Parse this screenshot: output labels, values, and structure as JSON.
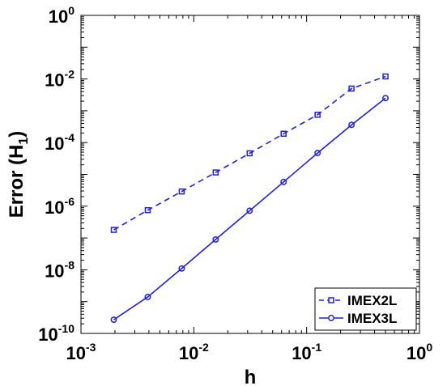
{
  "chart_data": {
    "type": "line",
    "xscale": "log",
    "yscale": "log",
    "xlim": [
      0.001,
      1
    ],
    "ylim": [
      1e-10,
      1
    ],
    "xlabel": "h",
    "ylabel_main": "Error (H",
    "ylabel_sub": "1",
    "ylabel_close": ")",
    "x_ticks": [
      {
        "value": 0.001,
        "base": "10",
        "exp": "-3"
      },
      {
        "value": 0.01,
        "base": "10",
        "exp": "-2"
      },
      {
        "value": 0.1,
        "base": "10",
        "exp": "-1"
      },
      {
        "value": 1,
        "base": "10",
        "exp": "0"
      }
    ],
    "y_ticks": [
      {
        "value": 1e-10,
        "base": "10",
        "exp": "-10"
      },
      {
        "value": 1e-08,
        "base": "10",
        "exp": "-8"
      },
      {
        "value": 1e-06,
        "base": "10",
        "exp": "-6"
      },
      {
        "value": 0.0001,
        "base": "10",
        "exp": "-4"
      },
      {
        "value": 0.01,
        "base": "10",
        "exp": "-2"
      },
      {
        "value": 1,
        "base": "10",
        "exp": "0"
      }
    ],
    "x": [
      0.001953125,
      0.00390625,
      0.0078125,
      0.015625,
      0.03125,
      0.0625,
      0.125,
      0.25,
      0.5
    ],
    "series": [
      {
        "name": "IMEX2L",
        "line_style": "dashed",
        "marker": "square",
        "color": "#1f1fe6",
        "values": [
          1.8e-07,
          7.5e-07,
          2.9e-06,
          1.15e-05,
          4.6e-05,
          0.00019,
          0.00075,
          0.005,
          0.012
        ]
      },
      {
        "name": "IMEX3L",
        "line_style": "solid",
        "marker": "circle",
        "color": "#1f1fe6",
        "values": [
          2.7e-10,
          1.4e-09,
          1.1e-08,
          9e-08,
          7.2e-07,
          5.8e-06,
          4.7e-05,
          0.00036,
          0.0025
        ]
      }
    ],
    "legend_position": "bottom-right",
    "grid": false
  }
}
